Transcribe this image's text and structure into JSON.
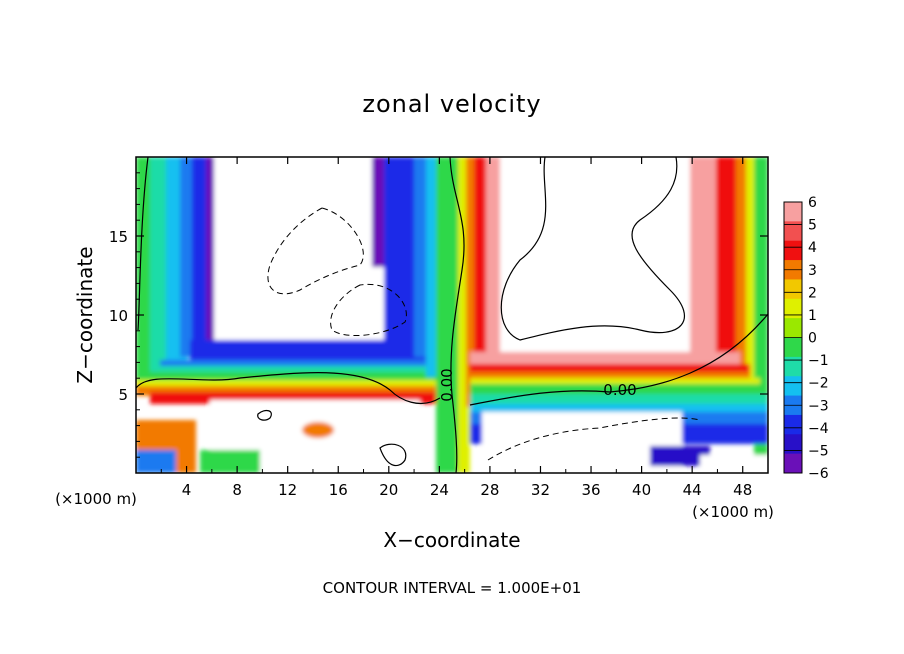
{
  "chart_data": {
    "type": "heatmap",
    "title": "zonal velocity",
    "xlabel": "X−coordinate",
    "ylabel": "Z−coordinate",
    "x_unit": "(×1000 m)",
    "z_unit": "(×1000 m)",
    "xlim": [
      0,
      50
    ],
    "ylim": [
      0,
      20
    ],
    "x_ticks": [
      4,
      8,
      12,
      16,
      20,
      24,
      28,
      32,
      36,
      40,
      44,
      48
    ],
    "y_ticks": [
      5,
      10,
      15
    ],
    "colorbar": {
      "levels": [
        6,
        5,
        4,
        3,
        2,
        1,
        0,
        -1,
        -2,
        -3,
        -4,
        -5,
        -6
      ],
      "labels": [
        "6",
        "5",
        "4",
        "3",
        "2",
        "1",
        "0",
        "−1",
        "−2",
        "−3",
        "−4",
        "−5",
        "−6"
      ],
      "colors": [
        "#f7a0a0",
        "#f25050",
        "#f01010",
        "#f27a00",
        "#f2c800",
        "#dff000",
        "#9ae800",
        "#2fd84a",
        "#1fdca8",
        "#14c0f0",
        "#1a7af0",
        "#1a2ae8",
        "#2810c8",
        "#6a10b8"
      ]
    },
    "contour_labels": [
      "0.00",
      "0.00"
    ],
    "contour_interval_text": "CONTOUR INTERVAL = 1.000E+01"
  }
}
